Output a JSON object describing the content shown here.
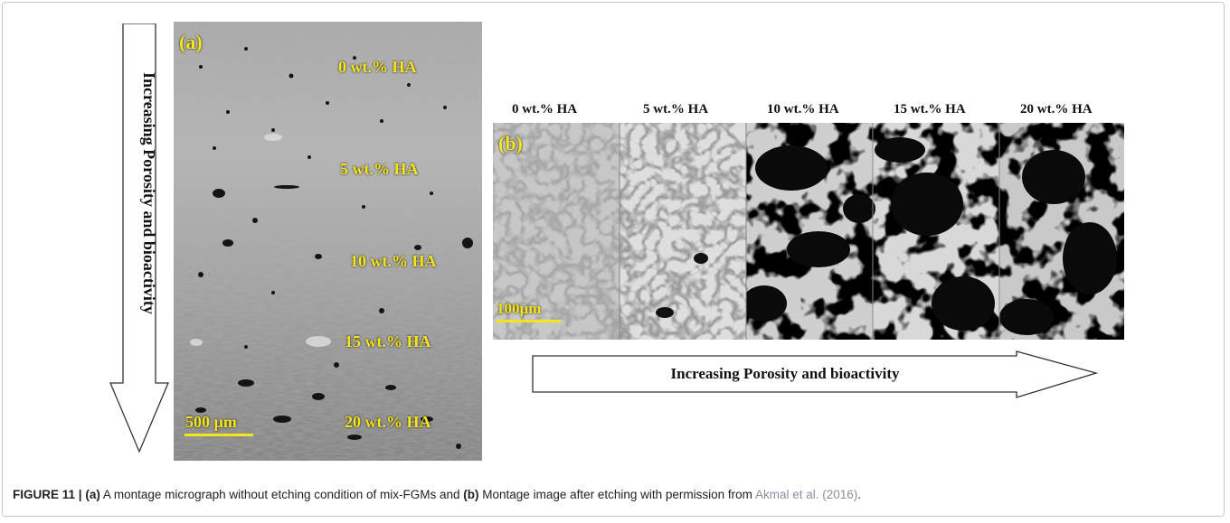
{
  "panel_a": {
    "tag": "(a)",
    "layers": [
      "0 wt.% HA",
      "5 wt.% HA",
      "10 wt.% HA",
      "15 wt.% HA",
      "20 wt.% HA"
    ],
    "scale_bar": "500 µm"
  },
  "panel_b": {
    "tag": "(b)",
    "columns": [
      "0 wt.% HA",
      "5 wt.% HA",
      "10 wt.% HA",
      "15 wt.% HA",
      "20 wt.% HA"
    ],
    "scale_bar": "100µm"
  },
  "arrow_vertical_label": "Increasing Porosity and bioactivity",
  "arrow_horizontal_label": "Increasing Porosity and bioactivity",
  "caption": {
    "figure_label": "FIGURE 11 |",
    "a_marker": "(a)",
    "text_1": " A montage micrograph without etching condition of mix-FGMs and ",
    "b_marker": "(b)",
    "text_2": " Montage image after etching with permission from ",
    "citation": "Akmal et al. (2016)",
    "end": "."
  }
}
